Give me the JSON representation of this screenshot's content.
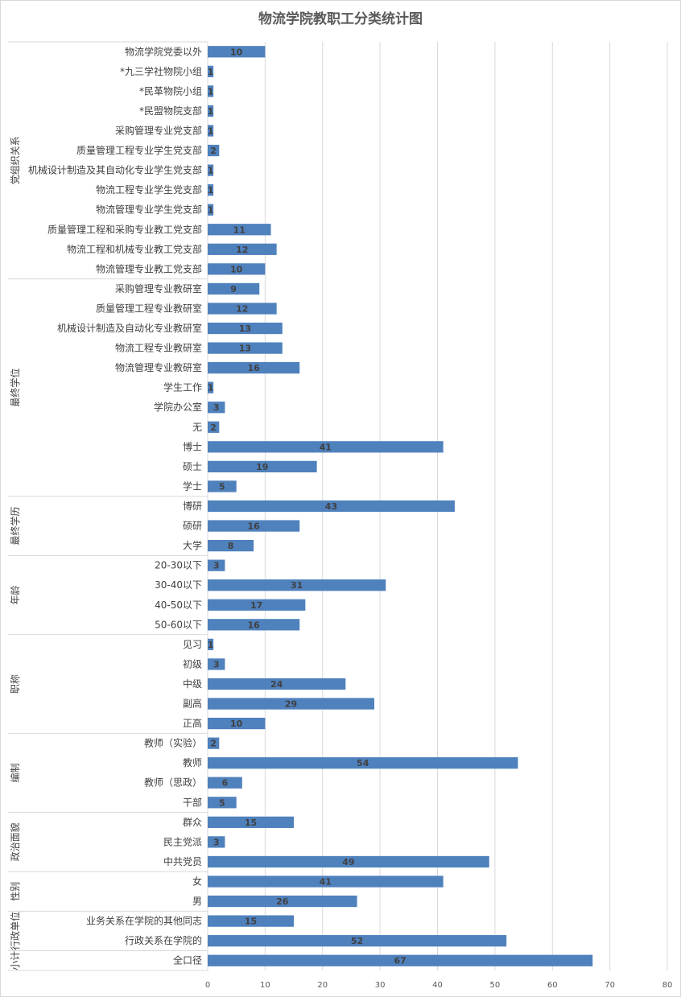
{
  "chart_data": {
    "type": "bar",
    "orientation": "horizontal",
    "title": "物流学院教职工分类统计图",
    "xlabel": "",
    "ylabel": "",
    "xlim": [
      0,
      80
    ],
    "xticks": [
      0,
      10,
      20,
      30,
      40,
      50,
      60,
      70,
      80
    ],
    "grid": true,
    "bar_color": "#4f81bd",
    "groups": [
      {
        "name": "党组织关系",
        "categories": [
          "物流学院党委以外",
          "*九三学社物院小组",
          "*民革物院小组",
          "*民盟物院支部",
          "采购管理专业党支部",
          "质量管理工程专业学生党支部",
          "机械设计制造及其自动化专业学生党支部",
          "物流工程专业学生党支部",
          "物流管理专业学生党支部",
          "质量管理工程和采购专业教工党支部",
          "物流工程和机械专业教工党支部",
          "物流管理专业教工党支部"
        ],
        "values": [
          10,
          1,
          1,
          1,
          1,
          2,
          1,
          1,
          1,
          11,
          12,
          10
        ]
      },
      {
        "name": "最终学位",
        "categories": [
          "采购管理专业教研室",
          "质量管理工程专业教研室",
          "机械设计制造及自动化专业教研室",
          "物流工程专业教研室",
          "物流管理专业教研室",
          "学生工作",
          "学院办公室",
          "无",
          "博士",
          "硕士",
          "学士"
        ],
        "values": [
          9,
          12,
          13,
          13,
          16,
          1,
          3,
          2,
          41,
          19,
          5
        ]
      },
      {
        "name": "最终学历",
        "categories": [
          "博研",
          "硕研",
          "大学"
        ],
        "values": [
          43,
          16,
          8
        ]
      },
      {
        "name": "年龄",
        "categories": [
          "20-30以下",
          "30-40以下",
          "40-50以下",
          "50-60以下"
        ],
        "values": [
          3,
          31,
          17,
          16
        ]
      },
      {
        "name": "职称",
        "categories": [
          "见习",
          "初级",
          "中级",
          "副高",
          "正高"
        ],
        "values": [
          1,
          3,
          24,
          29,
          10
        ]
      },
      {
        "name": "编制",
        "categories": [
          "教师（实验）",
          "教师",
          "教师（思政）",
          "干部"
        ],
        "values": [
          2,
          54,
          6,
          5
        ]
      },
      {
        "name": "政治面貌",
        "categories": [
          "群众",
          "民主党派",
          "中共党员"
        ],
        "values": [
          15,
          3,
          49
        ]
      },
      {
        "name": "性别",
        "categories": [
          "女",
          "男"
        ],
        "values": [
          41,
          26
        ]
      },
      {
        "name": "行政单位",
        "categories": [
          "业务关系在学院的其他同志",
          "行政关系在学院的"
        ],
        "values": [
          15,
          52
        ]
      },
      {
        "name": "小计",
        "categories": [
          "全口径"
        ],
        "values": [
          67
        ]
      }
    ]
  }
}
